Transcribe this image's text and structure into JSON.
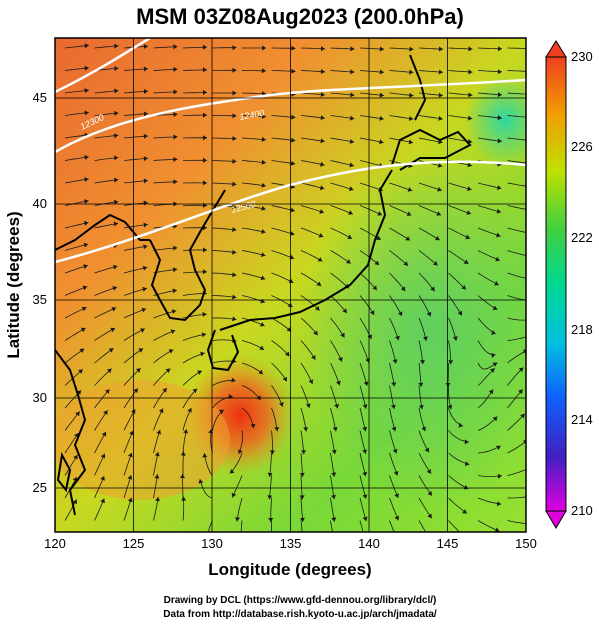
{
  "title": "MSM 03Z08Aug2023 (200.0hPa)",
  "xaxis": {
    "label": "Longitude (degrees)",
    "ticks": [
      "120",
      "125",
      "130",
      "135",
      "140",
      "145",
      "150"
    ],
    "range": [
      120,
      150
    ]
  },
  "yaxis": {
    "label": "Latitude  (degrees)",
    "ticks": [
      "25",
      "30",
      "35",
      "40",
      "45"
    ],
    "range": [
      22.4,
      47.6
    ]
  },
  "colorbar": {
    "ticks": [
      "230",
      "226",
      "222",
      "218",
      "214",
      "210"
    ],
    "range": [
      210,
      230
    ],
    "colors": [
      "#e000e0",
      "#3030c0",
      "#00a0ff",
      "#00e0a0",
      "#20c040",
      "#a0e000",
      "#f0e000",
      "#f0a000",
      "#f04000"
    ]
  },
  "contours": {
    "labels": [
      "12300",
      "12400",
      "12500"
    ]
  },
  "credits": {
    "line1": "Drawing by DCL (https://www.gfd-dennou.org/library/dcl/)",
    "line2": "Data from http://database.rish.kyoto-u.ac.jp/arch/jmadata/"
  }
}
